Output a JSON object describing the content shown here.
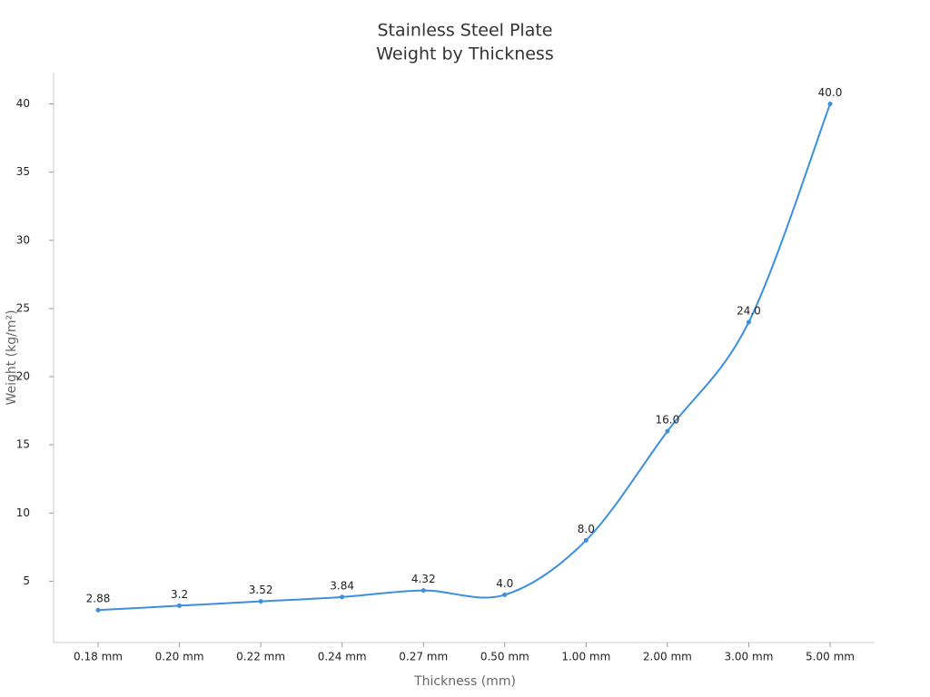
{
  "chart_data": {
    "type": "line",
    "title": [
      "Stainless Steel Plate",
      "Weight by Thickness"
    ],
    "x_label": "Thickness (mm)",
    "y_label": "Weight (kg/m²)",
    "categories": [
      "0.18 mm",
      "0.20 mm",
      "0.22 mm",
      "0.24 mm",
      "0.27 mm",
      "0.50 mm",
      "1.00 mm",
      "2.00 mm",
      "3.00 mm",
      "5.00 mm"
    ],
    "values": [
      2.88,
      3.2,
      3.52,
      3.84,
      4.32,
      4,
      8,
      16,
      24,
      40
    ],
    "value_labels": [
      "2.88",
      "3.2",
      "3.52",
      "3.84",
      "4.32",
      "4.0",
      "8.0",
      "16.0",
      "24.0",
      "40.0"
    ],
    "color": "#3b8fe0",
    "smooth": true,
    "grid": false,
    "ylim": [
      0.5,
      42.3
    ],
    "yticks": [
      5,
      10,
      15,
      20,
      25,
      30,
      35,
      40
    ]
  }
}
